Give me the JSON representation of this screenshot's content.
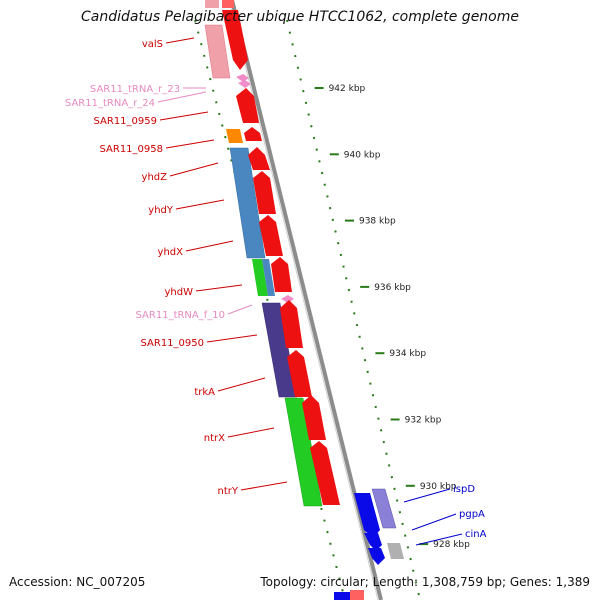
{
  "title": "Candidatus Pelagibacter ubique HTCC1062, complete genome",
  "footer": {
    "accession": "Accession: NC_007205",
    "summary": "Topology: circular; Length: 1,308,759 bp; Genes: 1,389"
  },
  "colors": {
    "backbone": "#8c8c8c",
    "cds_forward": "#ee1111",
    "cds_reverse": "#0a0ae8",
    "trna": "#f08cc8",
    "tick": "#2a7a1a",
    "label_red": "#cc0000",
    "label_pink": "#e68ac0",
    "label_blue": "#0000cc",
    "cog_blue": "#4a86c0",
    "cog_purple": "#4a3a8c",
    "cog_green": "#22cc22",
    "cog_orange": "#ff8800",
    "cog_pink": "#f0a0a8",
    "cog_lavender": "#8a80d8",
    "cog_gray": "#b0b0b0"
  },
  "scale": {
    "unit": "kbp",
    "ticks": [
      {
        "kbp": 942,
        "label": "942 kbp"
      },
      {
        "kbp": 940,
        "label": "940 kbp"
      },
      {
        "kbp": 938,
        "label": "938 kbp"
      },
      {
        "kbp": 936,
        "label": "936 kbp"
      },
      {
        "kbp": 934,
        "label": "934 kbp"
      },
      {
        "kbp": 932,
        "label": "932 kbp"
      },
      {
        "kbp": 930,
        "label": "930 kbp"
      },
      {
        "kbp": 928,
        "label": "928 kbp"
      }
    ]
  },
  "genes_left": [
    {
      "name": "valS",
      "color": "label_red"
    },
    {
      "name": "SAR11_tRNA_r_23",
      "color": "label_pink"
    },
    {
      "name": "SAR11_tRNA_r_24",
      "color": "label_pink"
    },
    {
      "name": "SAR11_0959",
      "color": "label_red"
    },
    {
      "name": "SAR11_0958",
      "color": "label_red"
    },
    {
      "name": "yhdZ",
      "color": "label_red"
    },
    {
      "name": "yhdY",
      "color": "label_red"
    },
    {
      "name": "yhdX",
      "color": "label_red"
    },
    {
      "name": "yhdW",
      "color": "label_red"
    },
    {
      "name": "SAR11_tRNA_f_10",
      "color": "label_pink"
    },
    {
      "name": "SAR11_0950",
      "color": "label_red"
    },
    {
      "name": "trkA",
      "color": "label_red"
    },
    {
      "name": "ntrX",
      "color": "label_red"
    },
    {
      "name": "ntrY",
      "color": "label_red"
    }
  ],
  "genes_right": [
    {
      "name": "ispD",
      "color": "label_blue"
    },
    {
      "name": "pgpA",
      "color": "label_blue"
    },
    {
      "name": "cinA",
      "color": "label_blue"
    }
  ]
}
